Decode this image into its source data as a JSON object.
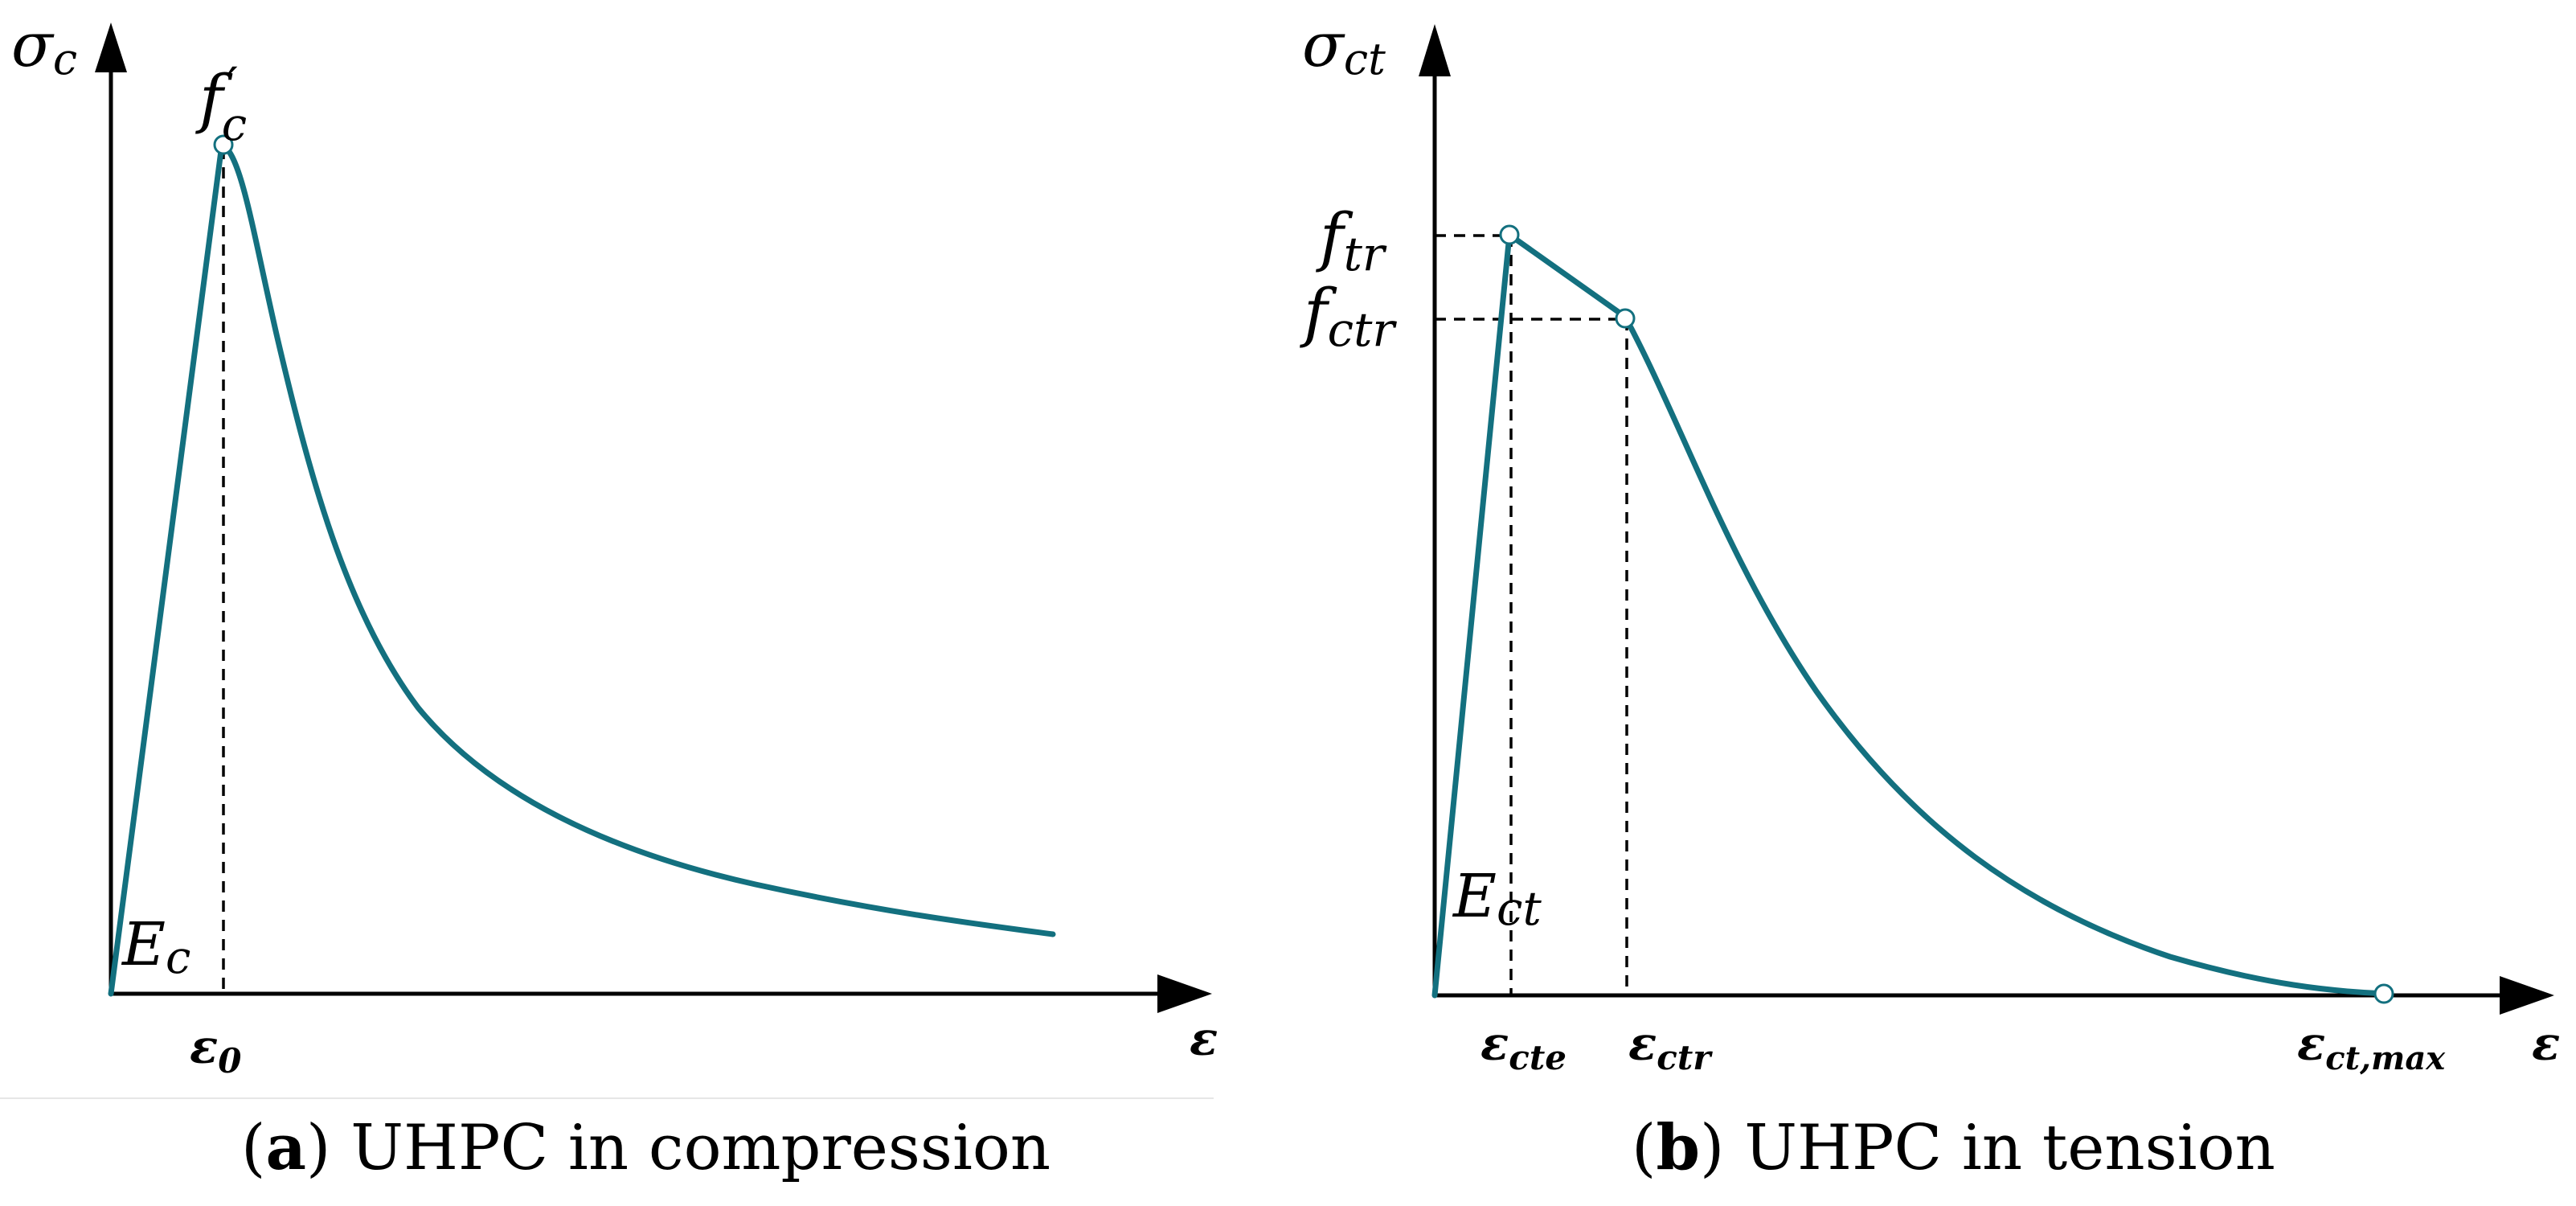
{
  "colors": {
    "curve": "#13707f",
    "axis": "#000000",
    "marker_stroke": "#13707f"
  },
  "panel_a": {
    "y_axis_symbol": "σ",
    "y_axis_sub": "c",
    "x_axis_symbol": "ε",
    "peak_label_base": "f",
    "peak_label_prime": "′",
    "peak_label_sub": "c",
    "modulus_base": "E",
    "modulus_sub": "c",
    "peak_strain_base": "ε",
    "peak_strain_sub": "0",
    "caption_tag": "a",
    "caption_open": "(",
    "caption_close": ")",
    "caption_text": " UHPC in compression"
  },
  "panel_b": {
    "y_axis_symbol": "σ",
    "y_axis_sub": "ct",
    "x_axis_symbol": "ε",
    "ftr_base": "f",
    "ftr_sub": "tr",
    "fctr_base": "f",
    "fctr_sub": "ctr",
    "modulus_base": "E",
    "modulus_sub": "ct",
    "ecte_base": "ε",
    "ecte_sub": "cte",
    "ectr_base": "ε",
    "ectr_sub": "ctr",
    "ectmax_base": "ε",
    "ectmax_sub": "ct,max",
    "caption_tag": "b",
    "caption_open": "(",
    "caption_close": ")",
    "caption_text": " UHPC in tension"
  }
}
